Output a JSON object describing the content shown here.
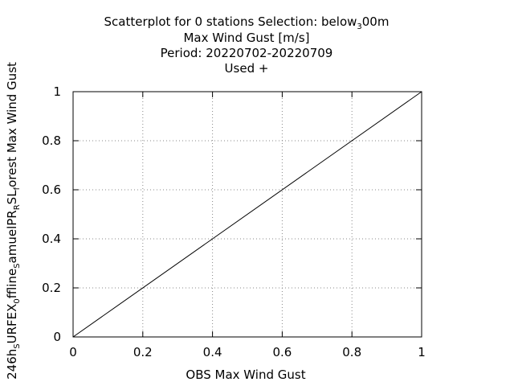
{
  "chart_data": {
    "type": "scatter",
    "title_lines": [
      {
        "parts": [
          "Scatterplot for    0 stations Selection: below",
          "3",
          "00m"
        ]
      },
      {
        "parts": [
          "Max Wind Gust [m/s]"
        ]
      },
      {
        "parts": [
          "Period: 20220702-20220709"
        ]
      },
      {
        "parts": [
          "Used   +"
        ]
      }
    ],
    "xlabel": "OBS Max Wind Gust",
    "ylabel_parts": [
      "246h",
      "S",
      "URFEX",
      "0",
      "ffline",
      "S",
      "amuelPR",
      "R",
      "SL",
      "f",
      "orest Max Wind Gust"
    ],
    "xlim": [
      0,
      1
    ],
    "ylim": [
      0,
      1
    ],
    "xticks": [
      "0",
      "0.2",
      "0.4",
      "0.6",
      "0.8",
      "1"
    ],
    "yticks": [
      "0",
      "0.2",
      "0.4",
      "0.6",
      "0.8",
      "1"
    ],
    "grid": true,
    "reference_line": {
      "x": [
        0,
        1
      ],
      "y": [
        0,
        1
      ]
    },
    "points": []
  }
}
